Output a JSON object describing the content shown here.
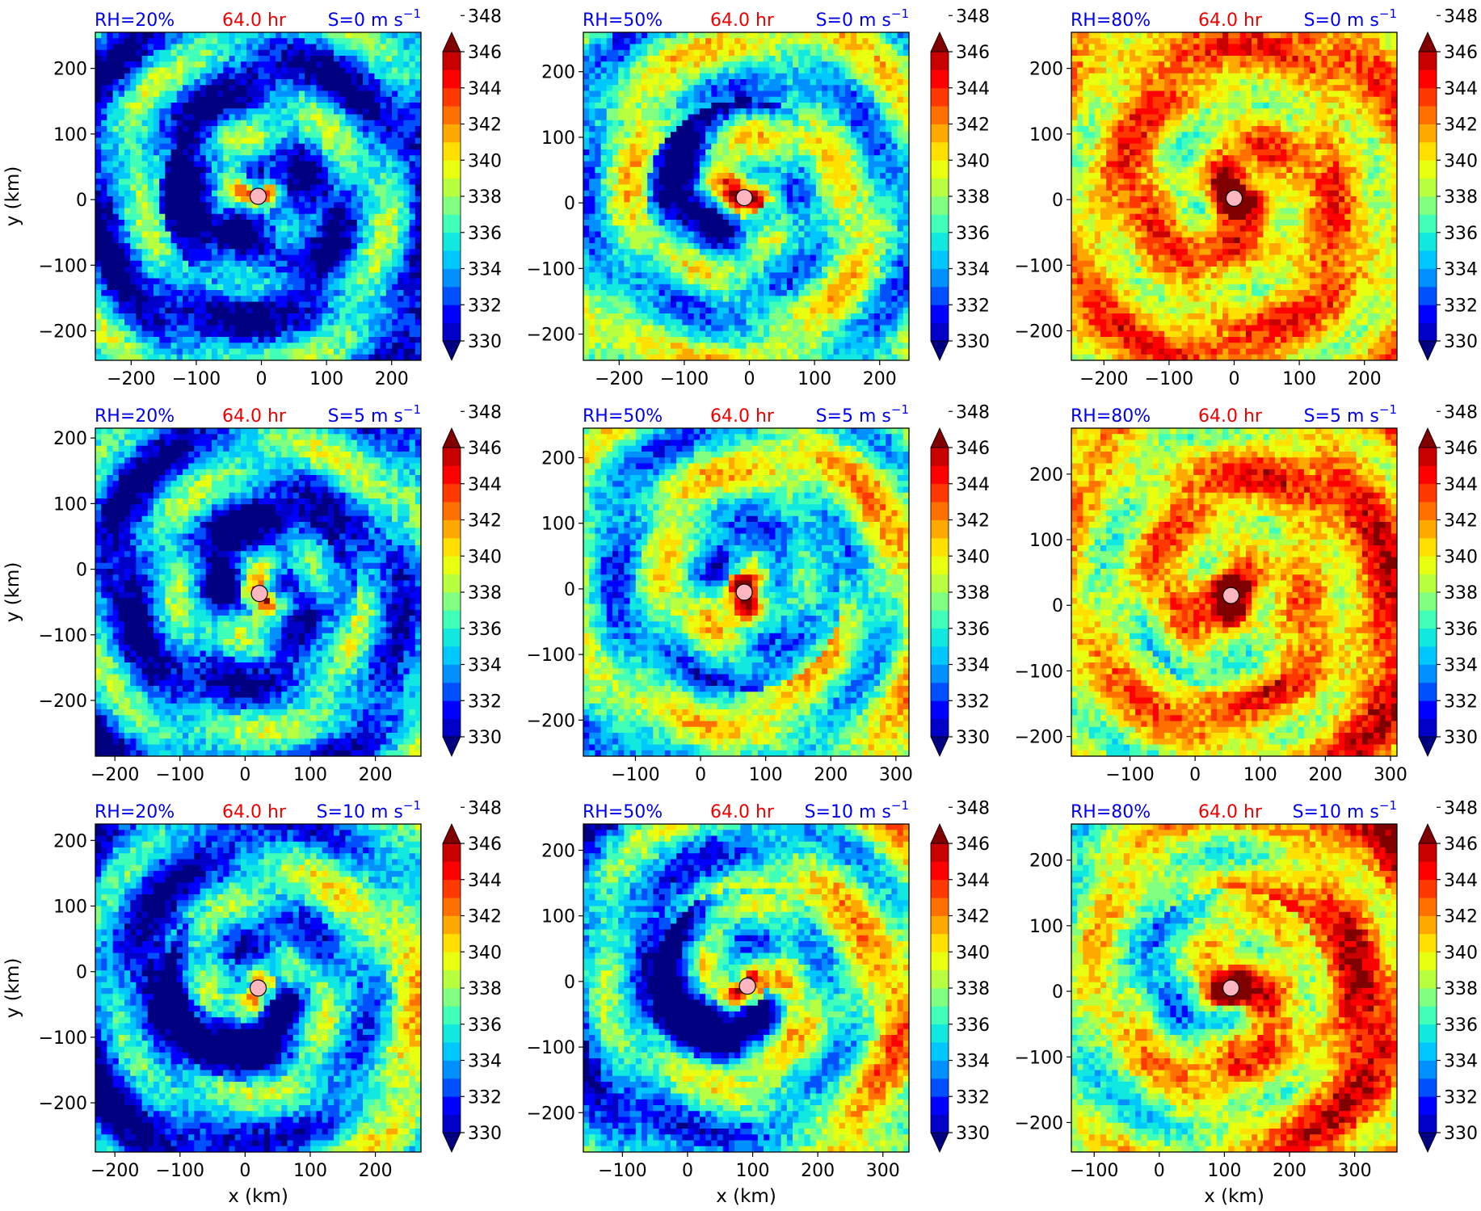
{
  "chart_data": {
    "type": "heatmap",
    "colorbar": {
      "ticks": [
        330,
        332,
        334,
        336,
        338,
        340,
        342,
        344,
        346,
        348
      ],
      "colors": [
        "#000080",
        "#0000c8",
        "#0000ff",
        "#0050ff",
        "#0090ff",
        "#00c8ff",
        "#10e8e0",
        "#40ffb8",
        "#80ff80",
        "#b8ff40",
        "#e8ff10",
        "#ffe000",
        "#ffa800",
        "#ff7000",
        "#ff3800",
        "#ff0000",
        "#c80000",
        "#800000"
      ]
    },
    "time_label": "64.0 hr",
    "xlabel": "x (km)",
    "ylabel": "y (km)",
    "panels": [
      {
        "rh": "RH=20%",
        "shear": "S=0",
        "xlim": [
          -255,
          245
        ],
        "ylim": [
          -245,
          255
        ],
        "xticks": [
          -200,
          -100,
          0,
          100,
          200
        ],
        "yticks": [
          -200,
          -100,
          0,
          100,
          200
        ],
        "center": [
          -5,
          5
        ],
        "base": 0.25,
        "amp": 0.35,
        "core": 0.55,
        "dry": 0.25,
        "asym": 0.0
      },
      {
        "rh": "RH=50%",
        "shear": "S=0",
        "xlim": [
          -255,
          245
        ],
        "ylim": [
          -240,
          260
        ],
        "xticks": [
          -200,
          -100,
          0,
          100,
          200
        ],
        "yticks": [
          -200,
          -100,
          0,
          100,
          200
        ],
        "center": [
          -8,
          8
        ],
        "base": 0.42,
        "amp": 0.3,
        "core": 0.78,
        "dry": 0.35,
        "asym": 0.0
      },
      {
        "rh": "RH=80%",
        "shear": "S=0",
        "xlim": [
          -250,
          250
        ],
        "ylim": [
          -245,
          255
        ],
        "xticks": [
          -200,
          -100,
          0,
          100,
          200
        ],
        "yticks": [
          -200,
          -100,
          0,
          100,
          200
        ],
        "center": [
          0,
          2
        ],
        "base": 0.68,
        "amp": 0.22,
        "core": 0.97,
        "dry": 0.1,
        "asym": 0.0
      },
      {
        "rh": "RH=20%",
        "shear": "S=5",
        "xlim": [
          -230,
          270
        ],
        "ylim": [
          -285,
          215
        ],
        "xticks": [
          -200,
          -100,
          0,
          100,
          200
        ],
        "yticks": [
          -200,
          -100,
          0,
          100,
          200
        ],
        "center": [
          22,
          -37
        ],
        "base": 0.27,
        "amp": 0.33,
        "core": 0.62,
        "dry": 0.2,
        "asym": 0.15
      },
      {
        "rh": "RH=50%",
        "shear": "S=5",
        "xlim": [
          -180,
          320
        ],
        "ylim": [
          -255,
          245
        ],
        "xticks": [
          -100,
          0,
          100,
          200,
          300
        ],
        "yticks": [
          -200,
          -100,
          0,
          100,
          200
        ],
        "center": [
          67,
          -5
        ],
        "base": 0.44,
        "amp": 0.3,
        "core": 0.88,
        "dry": 0.3,
        "asym": 0.2
      },
      {
        "rh": "RH=80%",
        "shear": "S=5",
        "xlim": [
          -190,
          310
        ],
        "ylim": [
          -230,
          270
        ],
        "xticks": [
          -100,
          0,
          100,
          200,
          300
        ],
        "yticks": [
          -200,
          -100,
          0,
          100,
          200
        ],
        "center": [
          55,
          15
        ],
        "base": 0.66,
        "amp": 0.24,
        "core": 0.98,
        "dry": 0.15,
        "asym": 0.25
      },
      {
        "rh": "RH=20%",
        "shear": "S=10",
        "xlim": [
          -230,
          270
        ],
        "ylim": [
          -275,
          225
        ],
        "xticks": [
          -200,
          -100,
          0,
          100,
          200
        ],
        "yticks": [
          -200,
          -100,
          0,
          100,
          200
        ],
        "center": [
          20,
          -25
        ],
        "base": 0.3,
        "amp": 0.3,
        "core": 0.45,
        "dry": 0.3,
        "asym": 0.4
      },
      {
        "rh": "RH=50%",
        "shear": "S=10",
        "xlim": [
          -160,
          340
        ],
        "ylim": [
          -260,
          240
        ],
        "xticks": [
          -100,
          0,
          100,
          200,
          300
        ],
        "yticks": [
          -200,
          -100,
          0,
          100,
          200
        ],
        "center": [
          92,
          -7
        ],
        "base": 0.4,
        "amp": 0.3,
        "core": 0.6,
        "dry": 0.4,
        "asym": 0.45
      },
      {
        "rh": "RH=80%",
        "shear": "S=10",
        "xlim": [
          -135,
          365
        ],
        "ylim": [
          -245,
          255
        ],
        "xticks": [
          -100,
          0,
          100,
          200,
          300
        ],
        "yticks": [
          -200,
          -100,
          0,
          100,
          200
        ],
        "center": [
          110,
          5
        ],
        "base": 0.62,
        "amp": 0.26,
        "core": 0.97,
        "dry": 0.25,
        "asym": 0.5
      }
    ]
  }
}
